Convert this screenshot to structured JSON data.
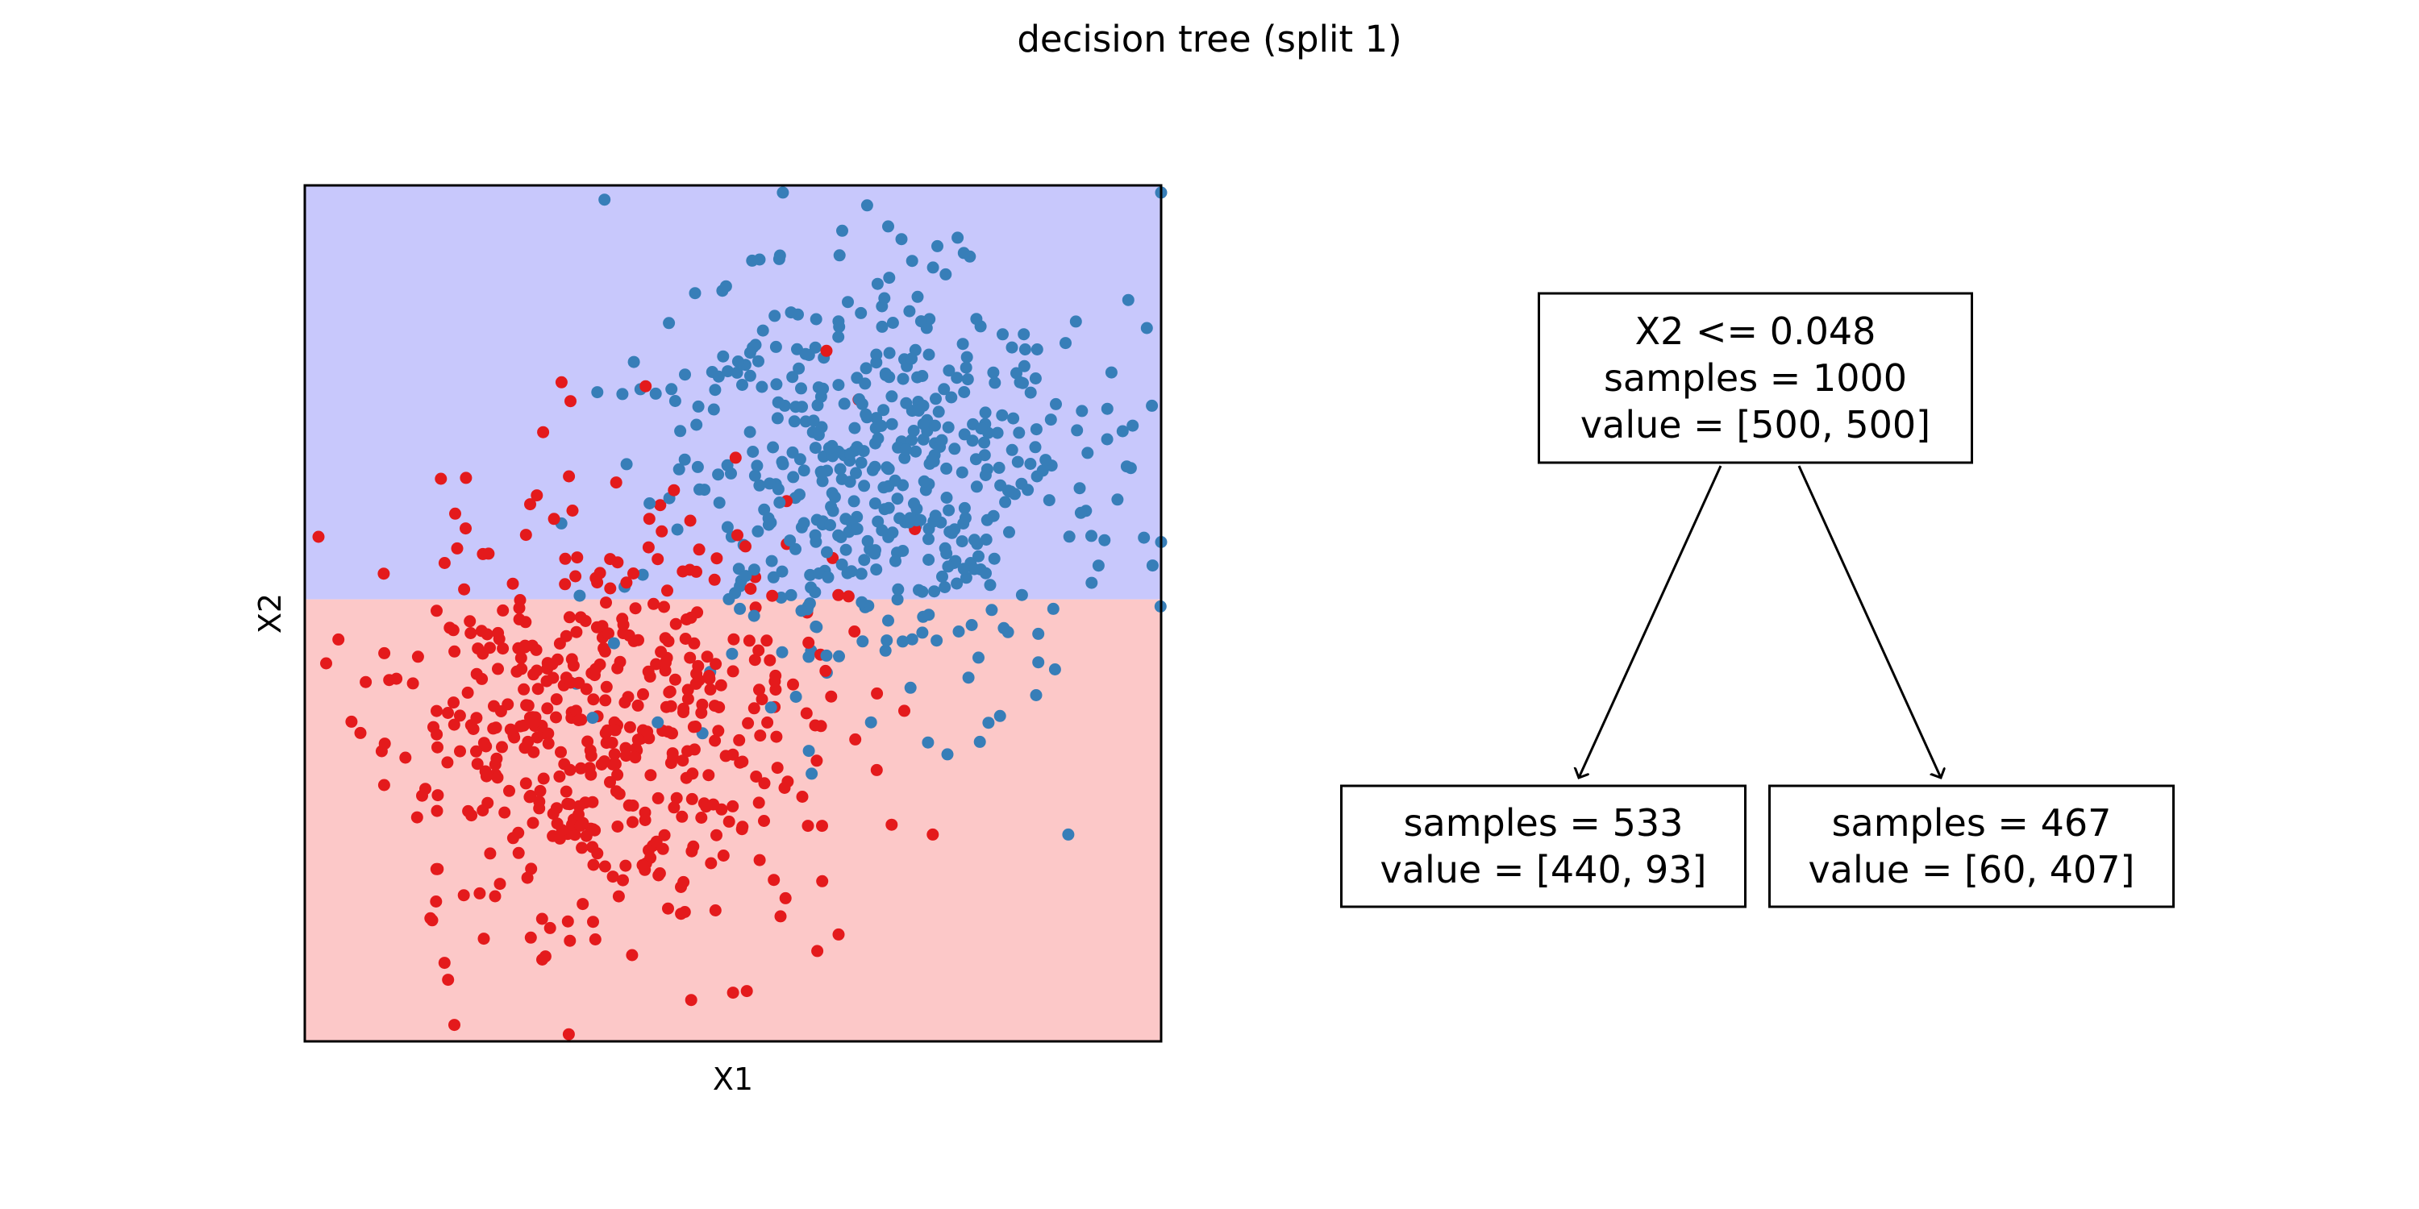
{
  "figure": {
    "title": "decision tree (split 1)"
  },
  "chart_data": [
    {
      "type": "scatter",
      "title": "",
      "xlabel": "X1",
      "ylabel": "X2",
      "xlim": [
        -3.05,
        2.95
      ],
      "ylim": [
        -3.05,
        2.95
      ],
      "grid": false,
      "ticks": "none",
      "regions": [
        {
          "label": "X2 > 0.048",
          "y_from": 0.048,
          "y_to": 2.95,
          "color": "#c8c8fc"
        },
        {
          "label": "X2 <= 0.048",
          "y_from": -3.05,
          "y_to": 0.048,
          "color": "#fcc8c8"
        }
      ],
      "split": {
        "feature": "X2",
        "threshold": 0.048
      },
      "series": [
        {
          "color": "#e41a1c",
          "n_points": 500,
          "center": [
            -0.95,
            -0.8
          ],
          "spread": [
            0.75,
            0.75
          ],
          "seed": 11,
          "points_extra": [
            [
              -2.13,
              -2.07
            ],
            [
              -1.2,
              -3.0
            ],
            [
              1.35,
              -1.6
            ],
            [
              -1.38,
              1.22
            ],
            [
              -2.9,
              -0.4
            ],
            [
              -1.5,
              0.5
            ]
          ]
        },
        {
          "color": "#377eb8",
          "n_points": 500,
          "center": [
            0.9,
            0.9
          ],
          "spread": [
            0.75,
            0.75
          ],
          "seed": 23,
          "points_extra": [
            [
              2.95,
              2.9
            ],
            [
              0.3,
              2.9
            ],
            [
              -0.95,
              2.85
            ],
            [
              2.85,
              1.95
            ],
            [
              2.95,
              0.45
            ],
            [
              2.3,
              -1.6
            ],
            [
              1.6,
              -0.5
            ],
            [
              -1.0,
              1.5
            ]
          ]
        }
      ]
    },
    {
      "type": "tree",
      "root": {
        "lines": [
          "X2 <= 0.048",
          "samples = 1000",
          "value = [500, 500]"
        ]
      },
      "children": [
        {
          "lines": [
            "samples = 533",
            "value = [440, 93]"
          ]
        },
        {
          "lines": [
            "samples = 467",
            "value = [60, 407]"
          ]
        }
      ]
    }
  ]
}
